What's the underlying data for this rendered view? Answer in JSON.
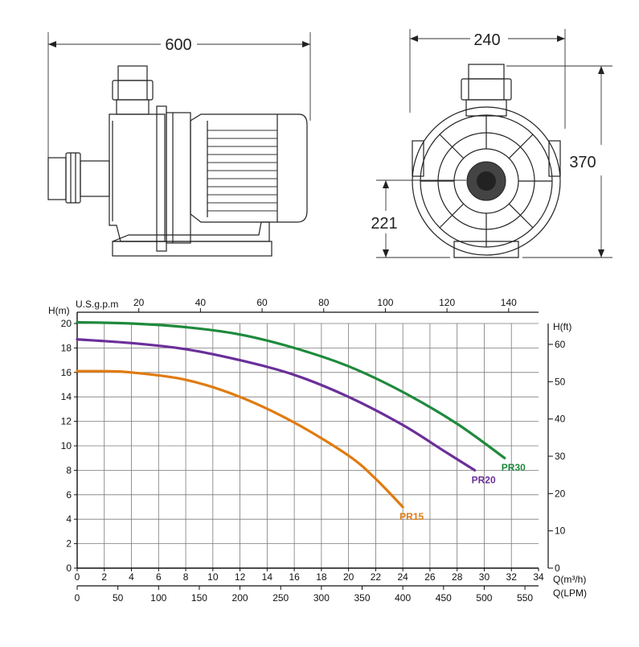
{
  "drawing": {
    "side_width": "600",
    "front_width": "240",
    "front_height": "370",
    "shaft_height": "221"
  },
  "chart_data": {
    "type": "line",
    "x": {
      "label": "Q(m³/h)",
      "range": [
        0,
        34
      ],
      "ticks": [
        0,
        2,
        4,
        6,
        8,
        10,
        12,
        14,
        16,
        18,
        20,
        22,
        24,
        26,
        28,
        30,
        32,
        34
      ]
    },
    "x2": {
      "label": "Q(LPM)",
      "range": [
        0,
        566.7
      ],
      "ticks": [
        0,
        50,
        100,
        150,
        200,
        250,
        300,
        350,
        400,
        450,
        500,
        550
      ]
    },
    "x3": {
      "label": "U.S.g.p.m",
      "range": [
        0,
        149.7
      ],
      "ticks": [
        20,
        40,
        60,
        80,
        100,
        120,
        140
      ]
    },
    "y": {
      "label": "H(m)",
      "range": [
        0,
        20
      ],
      "ticks": [
        0,
        2,
        4,
        6,
        8,
        10,
        12,
        14,
        16,
        18,
        20
      ]
    },
    "y2": {
      "label": "H(ft)",
      "range": [
        0,
        65.6
      ],
      "ticks": [
        0,
        10,
        20,
        30,
        40,
        50,
        60
      ]
    },
    "grid": true,
    "series": [
      {
        "name": "PR30",
        "color": "#1e8a3c",
        "x": [
          0,
          4,
          8,
          12,
          16,
          20,
          24,
          28,
          31.5
        ],
        "y": [
          20.1,
          20.0,
          19.7,
          19.1,
          18.0,
          16.5,
          14.4,
          11.8,
          9.0
        ]
      },
      {
        "name": "PR20",
        "color": "#6a2f9a",
        "x": [
          0,
          4,
          8,
          12,
          16,
          20,
          24,
          27,
          29.3
        ],
        "y": [
          18.7,
          18.4,
          17.9,
          17.0,
          15.8,
          14.0,
          11.7,
          9.6,
          8.0
        ]
      },
      {
        "name": "PR15",
        "color": "#e07b10",
        "x": [
          0,
          2,
          4,
          8,
          12,
          16,
          20,
          22,
          24
        ],
        "y": [
          16.1,
          16.1,
          16.0,
          15.4,
          14.0,
          11.9,
          9.2,
          7.3,
          5.0
        ]
      }
    ]
  }
}
